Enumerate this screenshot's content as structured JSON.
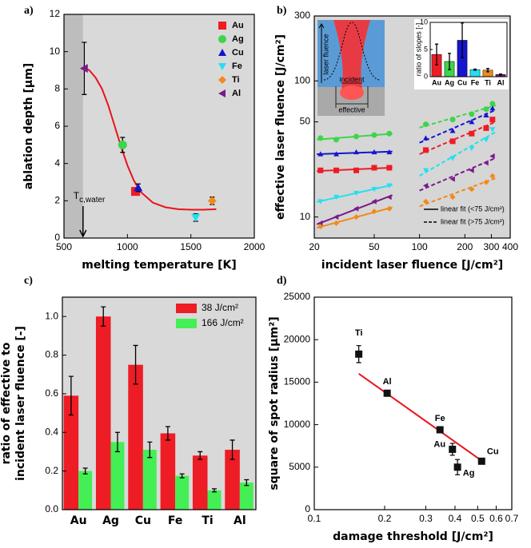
{
  "chart_data": [
    {
      "type": "scatter",
      "panel_label": "a)",
      "xlabel": "melting temperature [K]",
      "ylabel": "ablation depth [µm]",
      "xlim": [
        500,
        2000
      ],
      "xticks": [
        500,
        1000,
        1500,
        2000
      ],
      "ylim": [
        0,
        12
      ],
      "yticks": [
        0,
        2,
        4,
        6,
        8,
        10,
        12
      ],
      "background": "#d9d9d9",
      "shaded_until": 650,
      "shade_color": "#bdbdbd",
      "series": [
        {
          "name": "Au",
          "color": "#ee1c25",
          "marker": "square",
          "x": [
            1064
          ],
          "values": [
            2.5
          ],
          "errors": [
            0.2
          ]
        },
        {
          "name": "Ag",
          "color": "#3dd54a",
          "marker": "circle",
          "x": [
            962
          ],
          "values": [
            5.0
          ],
          "errors": [
            0.4
          ]
        },
        {
          "name": "Cu",
          "color": "#1515d0",
          "marker": "triangle-up",
          "x": [
            1085
          ],
          "values": [
            2.7
          ],
          "errors": [
            0.2
          ]
        },
        {
          "name": "Fe",
          "color": "#22e0f0",
          "marker": "triangle-down",
          "x": [
            1538
          ],
          "values": [
            1.1
          ],
          "errors": [
            0.2
          ]
        },
        {
          "name": "Ti",
          "color": "#f08a1c",
          "marker": "diamond",
          "x": [
            1668
          ],
          "values": [
            2.0
          ],
          "errors": [
            0.2
          ]
        },
        {
          "name": "Al",
          "color": "#7a1a8a",
          "marker": "triangle-left",
          "x": [
            660
          ],
          "values": [
            9.1
          ],
          "errors": [
            1.4
          ]
        }
      ],
      "fit": {
        "color": "#e8141b",
        "x": [
          650,
          700,
          750,
          800,
          850,
          900,
          950,
          1000,
          1050,
          1100,
          1200,
          1300,
          1400,
          1500,
          1600,
          1700
        ],
        "values": [
          9.2,
          9.0,
          8.6,
          8.0,
          7.1,
          6.0,
          4.9,
          3.9,
          3.1,
          2.5,
          1.9,
          1.65,
          1.55,
          1.52,
          1.52,
          1.55
        ]
      },
      "annotation": {
        "text": "T",
        "subscript": "c,water",
        "x": 650
      }
    },
    {
      "type": "line",
      "panel_label": "b)",
      "xlabel": "incident laser fluence [J/cm²]",
      "ylabel": "effective laser fluence [J/cm²]",
      "xscale": "log",
      "yscale": "log",
      "xlim": [
        20,
        400
      ],
      "xticks": [
        20,
        50,
        100,
        200,
        300,
        400
      ],
      "ylim": [
        7,
        300
      ],
      "yticks": [
        10,
        50,
        100,
        300
      ],
      "background": "#d6d6d6",
      "x": [
        22,
        28,
        38,
        50,
        63,
        110,
        166,
        222,
        277,
        305
      ],
      "series": [
        {
          "name": "Ag",
          "color": "#3dd54a",
          "marker": "circle",
          "values": [
            38,
            37,
            39,
            40,
            41,
            48,
            52,
            57,
            62,
            68
          ]
        },
        {
          "name": "Cu",
          "color": "#1515d0",
          "marker": "triangle-up",
          "values": [
            29,
            29,
            30,
            30,
            30,
            38,
            43,
            50,
            56,
            63
          ]
        },
        {
          "name": "Au",
          "color": "#ee1c25",
          "marker": "square",
          "values": [
            22,
            22,
            22,
            23,
            23,
            31,
            36,
            41,
            45,
            52
          ]
        },
        {
          "name": "Fe",
          "color": "#22e0f0",
          "marker": "triangle-down",
          "values": [
            13,
            14,
            15,
            16,
            17,
            22,
            27,
            32,
            37,
            44
          ]
        },
        {
          "name": "Al",
          "color": "#7a1a8a",
          "marker": "triangle-left",
          "values": [
            9,
            10,
            11.5,
            13,
            14,
            17,
            19,
            22,
            25,
            28
          ]
        },
        {
          "name": "Ti",
          "color": "#f08a1c",
          "marker": "diamond",
          "values": [
            8.5,
            9,
            10,
            11,
            11.5,
            13,
            14,
            16,
            18,
            20
          ]
        }
      ],
      "fit_legend": [
        {
          "label": "linear fit (<75 J/cm²)",
          "dash": "solid"
        },
        {
          "label": "linear fit (>75 J/cm²)",
          "dash": "dashed"
        }
      ],
      "diagram": {
        "axis_label": "laser fluence",
        "incident": "incident",
        "effective": "effective"
      },
      "inset": {
        "type": "bar",
        "ylabel": "ratio of slopes [-]",
        "categories": [
          "Au",
          "Ag",
          "Cu",
          "Fe",
          "Ti",
          "Al"
        ],
        "values": [
          4.1,
          2.8,
          6.7,
          1.3,
          1.2,
          0.4
        ],
        "errors": [
          1.9,
          1.5,
          3.2,
          0.1,
          0.3,
          0.1
        ],
        "colors": [
          "#ee1c25",
          "#3dd54a",
          "#1515d0",
          "#22e0f0",
          "#f08a1c",
          "#7a1a8a"
        ],
        "ylim": [
          0,
          10
        ],
        "yticks": [
          0,
          5,
          10
        ]
      }
    },
    {
      "type": "bar",
      "panel_label": "c)",
      "ylabel": [
        "ratio of effective to",
        "incident laser fluence [-]"
      ],
      "categories": [
        "Au",
        "Ag",
        "Cu",
        "Fe",
        "Ti",
        "Al"
      ],
      "ylim": [
        0,
        1.1
      ],
      "yticks": [
        {
          "value": 0,
          "label": "0.0"
        },
        0.2,
        0.4,
        0.6,
        0.8,
        {
          "value": 1,
          "label": "1.0"
        }
      ],
      "background": "#d9d9d9",
      "series": [
        {
          "name": "38 J/cm²",
          "color": "#ee1c25",
          "values": [
            0.59,
            1.0,
            0.75,
            0.395,
            0.28,
            0.31
          ],
          "errors": [
            0.1,
            0.05,
            0.1,
            0.035,
            0.02,
            0.05
          ]
        },
        {
          "name": "166 J/cm²",
          "color": "#44ee55",
          "values": [
            0.2,
            0.35,
            0.31,
            0.175,
            0.1,
            0.14
          ],
          "errors": [
            0.015,
            0.05,
            0.04,
            0.01,
            0.008,
            0.015
          ]
        }
      ]
    },
    {
      "type": "scatter",
      "panel_label": "d)",
      "xlabel": "damage threshold [J/cm²]",
      "ylabel": "square of spot radius [µm²]",
      "xscale": "log",
      "xlim": [
        0.1,
        0.7
      ],
      "xticks": [
        0.1,
        0.2,
        0.3,
        0.4,
        0.5,
        0.6,
        0.7
      ],
      "ylim": [
        0,
        25000
      ],
      "yticks": [
        0,
        5000,
        10000,
        15000,
        20000,
        25000
      ],
      "background": "#ffffff",
      "labels": [
        "Ti",
        "Al",
        "Fe",
        "Au",
        "Ag",
        "Cu"
      ],
      "color": "#111111",
      "x": [
        0.155,
        0.205,
        0.345,
        0.39,
        0.41,
        0.52
      ],
      "values": [
        18300,
        13700,
        9400,
        7100,
        5000,
        5700
      ],
      "errors": [
        1000,
        300,
        200,
        700,
        900,
        200
      ],
      "fit": {
        "color": "#e8141b",
        "x": [
          0.155,
          0.53
        ],
        "values": [
          16000,
          5600
        ]
      }
    }
  ]
}
